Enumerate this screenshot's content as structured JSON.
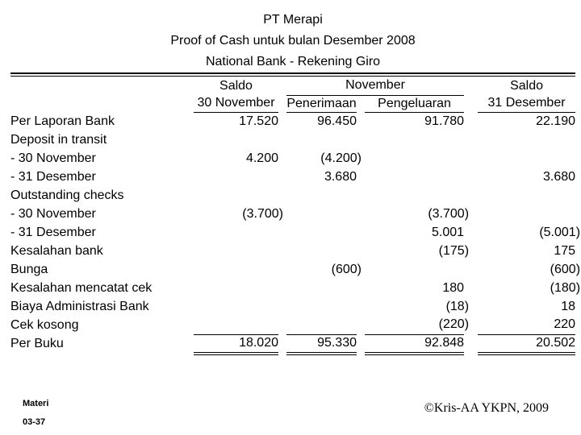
{
  "title": {
    "line1": "PT Merapi",
    "line2": "Proof of Cash untuk bulan Desember 2008",
    "line3": "National Bank - Rekening Giro"
  },
  "table": {
    "header": {
      "col2_top": "Saldo",
      "group": "November",
      "col5_top": "Saldo",
      "col2": "30 November",
      "col3": "Penerimaan",
      "col4": "Pengeluaran",
      "col5": "31 Desember"
    },
    "rows": [
      {
        "label": "Per Laporan Bank",
        "c2": "17.520",
        "c3": "96.450",
        "c4": "91.780",
        "c5": "22.190"
      },
      {
        "label": "Deposit in transit",
        "c2": "",
        "c3": "",
        "c4": "",
        "c5": ""
      },
      {
        "label": "- 30 November",
        "c2": "4.200",
        "c3": "(4.200)",
        "c4": "",
        "c5": ""
      },
      {
        "label": "- 31 Desember",
        "c2": "",
        "c3": "3.680",
        "c4": "",
        "c5": "3.680"
      },
      {
        "label": "Outstanding checks",
        "c2": "",
        "c3": "",
        "c4": "",
        "c5": ""
      },
      {
        "label": "- 30 November",
        "c2": "(3.700)",
        "c3": "",
        "c4": "(3.700)",
        "c5": ""
      },
      {
        "label": "- 31 Desember",
        "c2": "",
        "c3": "",
        "c4": "5.001",
        "c5": "(5.001)"
      },
      {
        "label": "Kesalahan bank",
        "c2": "",
        "c3": "",
        "c4": "(175)",
        "c5": "175"
      },
      {
        "label": "Bunga",
        "c2": "",
        "c3": "(600)",
        "c4": "",
        "c5": "(600)"
      },
      {
        "label": "Kesalahan mencatat cek",
        "c2": "",
        "c3": "",
        "c4": "180",
        "c5": "(180)"
      },
      {
        "label": "Biaya Administrasi Bank",
        "c2": "",
        "c3": "",
        "c4": "(18)",
        "c5": "18"
      },
      {
        "label": "Cek kosong",
        "c2": "",
        "c3": "",
        "c4": "(220)",
        "c5": "220"
      }
    ],
    "totals": {
      "label": "Per Buku",
      "c2": "18.020",
      "c3": "95.330",
      "c4": "92.848",
      "c5": "20.502"
    }
  },
  "footer": {
    "materi_label": "Materi",
    "materi_number": "03-37",
    "credit": "©Kris-AA YKPN, 2009"
  },
  "colors": {
    "background": "#ffffff",
    "text": "#000000",
    "rules": "#000000"
  }
}
